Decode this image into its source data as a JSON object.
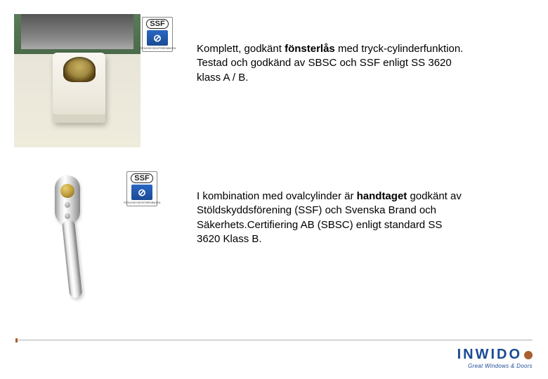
{
  "row1": {
    "text_prefix": "Komplett, godkänt ",
    "text_bold": "fönsterlås",
    "text_suffix": " med tryck-cylinderfunktion. Testad och godkänd av SBSC och SSF enligt SS 3620 klass A / B.",
    "badge_label": "SSF",
    "badge_sub": "STÖLDSKYDDSFÖRENINGEN"
  },
  "row2": {
    "text_prefix": "I kombination med ovalcylinder är ",
    "text_bold": "handtaget",
    "text_suffix": " godkänt av Stöldskyddsförening (SSF) och Svenska Brand och Säkerhets.Certifiering AB (SBSC) enligt standard SS 3620 Klass B.",
    "badge_label": "SSF",
    "badge_sub": "STÖLDSKYDDSFÖRENINGEN"
  },
  "logo": {
    "text": "INWIDO",
    "tagline": "Great Windows & Doors"
  },
  "colors": {
    "text": "#000000",
    "brand_blue": "#1a4a94",
    "brand_orange": "#a86030",
    "divider": "#b0b0b0"
  },
  "typography": {
    "body_fontsize": 15,
    "logo_fontsize": 20,
    "tagline_fontsize": 8
  }
}
